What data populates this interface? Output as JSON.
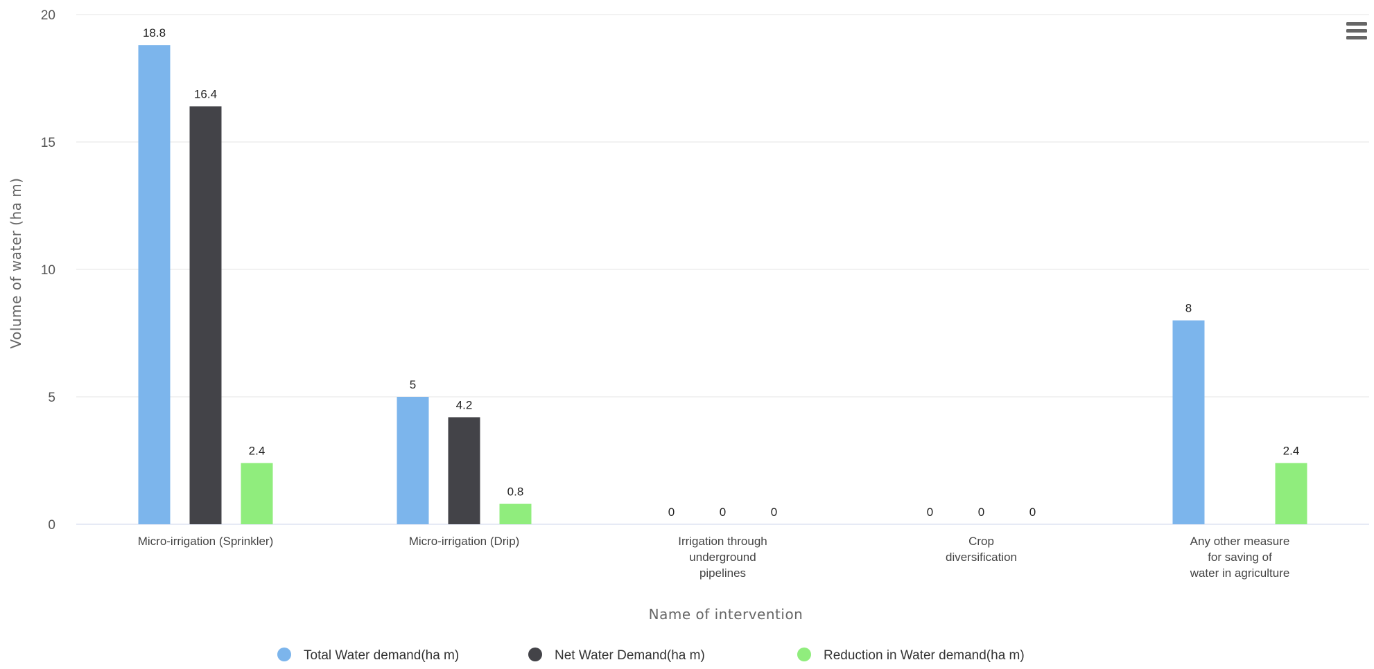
{
  "chart_data": {
    "type": "bar",
    "title": "",
    "xlabel": "Name of intervention",
    "ylabel": "Volume of water (ha m)",
    "ylim": [
      0,
      20
    ],
    "yticks": [
      0,
      5,
      10,
      15,
      20
    ],
    "grid": true,
    "legend_position": "bottom-center",
    "categories": [
      [
        "Micro-irrigation (Sprinkler)"
      ],
      [
        "Micro-irrigation (Drip)"
      ],
      [
        "Irrigation through",
        "underground",
        "pipelines"
      ],
      [
        "Crop",
        "diversification"
      ],
      [
        "Any other measure",
        "for saving of",
        "water in agriculture"
      ]
    ],
    "series": [
      {
        "name": "Total Water demand(ha m)",
        "color": "#7cb5ec",
        "values": [
          18.8,
          5,
          0,
          0,
          8
        ],
        "labels": [
          "18.8",
          "5",
          "0",
          "0",
          "8"
        ]
      },
      {
        "name": "Net Water Demand(ha m)",
        "color": "#434348",
        "values": [
          16.4,
          4.2,
          0,
          0,
          null
        ],
        "labels": [
          "16.4",
          "4.2",
          "0",
          "0",
          null
        ]
      },
      {
        "name": "Reduction in Water demand(ha m)",
        "color": "#90ed7d",
        "values": [
          2.4,
          0.8,
          0,
          0,
          2.4
        ],
        "labels": [
          "2.4",
          "0.8",
          "0",
          "0",
          "2.4"
        ]
      }
    ]
  },
  "toolbar": {
    "menu_icon": "hamburger-menu-icon"
  }
}
